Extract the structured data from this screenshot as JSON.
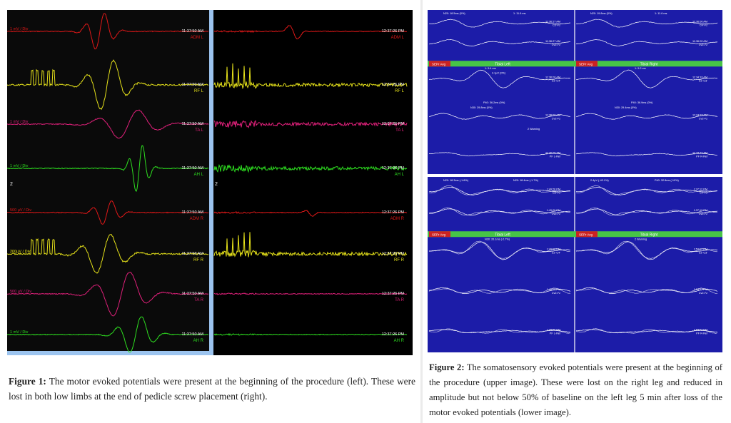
{
  "figure1": {
    "caption_label": "Figure 1:",
    "caption_text": " The motor evoked potentials were present at the beginning of the procedure (left). These were lost in both low limbs at the end of pedicle screw placement (right).",
    "left_group_marker": "2",
    "right_group_marker": "2",
    "left_channels": [
      {
        "scale": "1 mV / Div",
        "time": "11:37:50 AM",
        "label": "ADM L",
        "color": "#e01818"
      },
      {
        "scale": "",
        "time": "11:37:50 AM",
        "label": "RF L",
        "color": "#e6e21a"
      },
      {
        "scale": "1 mV / Div",
        "time": "11:37:50 AM",
        "label": "TA L",
        "color": "#e0207a"
      },
      {
        "scale": "1 mV / Div",
        "time": "11:37:50 AM",
        "label": "AH L",
        "color": "#2ee020"
      },
      {
        "scale": "500 µV / Div",
        "time": "11:37:50 AM",
        "label": "ADM R",
        "color": "#e01818"
      },
      {
        "scale": "200µV / Div",
        "time": "11:37:50 AM",
        "label": "RF R",
        "color": "#e6e21a"
      },
      {
        "scale": "500 µV / Div",
        "time": "11:37:50 AM",
        "label": "TA R",
        "color": "#e0207a"
      },
      {
        "scale": "1 mV / Div",
        "time": "11:37:50 AM",
        "label": "AH R",
        "color": "#2ee020"
      }
    ],
    "right_channels": [
      {
        "scale": "",
        "time": "12:37:26 PM",
        "label": "ADM L"
      },
      {
        "scale": "",
        "time": "12:37:26 PM",
        "label": "RF L"
      },
      {
        "scale": "",
        "time": "12:37:26 PM",
        "label": "TA L"
      },
      {
        "scale": "",
        "time": "12:37:26 PM",
        "label": "AH L"
      },
      {
        "scale": "",
        "time": "12:37:26 PM",
        "label": "ADM R"
      },
      {
        "scale": "",
        "time": "12:37:26 PM",
        "label": "RF R"
      },
      {
        "scale": "",
        "time": "12:37:26 PM",
        "label": "TA R"
      },
      {
        "scale": "",
        "time": "12:37:26 PM",
        "label": "AH R"
      }
    ]
  },
  "figure2": {
    "caption_label": "Figure 2:",
    "caption_text": " The somatosensory evoked potentials were present at the beginning of the procedure (upper image). These were lost on the right leg and reduced in amplitude but not below 50% of baseline on the left leg 5 min after loss of the motor evoked potentials (lower image).",
    "upper": {
      "left_header": "Tibial Left",
      "right_header": "Tibial Right",
      "tab_label": "SEPr Avg",
      "rows": [
        {
          "time_l": "11:36:27 AM",
          "ch_l": "C3'-Fz",
          "time_r": "11:36:00 AM",
          "ch_r": "C4'-Fz"
        },
        {
          "time_l": "11:36:27 AM",
          "ch_l": "Cv2-Fz",
          "time_r": "11:36:00 AM",
          "ch_r": "Cv2-Fz"
        },
        {
          "time_l": "11:36:00 AM",
          "ch_l": "Cz'-C4'",
          "time_r": "11:34:33 AM",
          "ch_r": "Cz'-C3'"
        },
        {
          "time_l": "11:36:00 AM",
          "ch_l": "Cv2-Fz",
          "time_r": "11:34:33 AM",
          "ch_r": "Cv2-Fz"
        },
        {
          "time_l": "11:36:00 AM",
          "ch_l": "PF L-Ref",
          "time_r": "11:34:33 AM",
          "ch_r": "PF R-Ref"
        }
      ],
      "markers": [
        "N20: 18.5ms (0%)",
        "1: 11.6 ms",
        "N20: 19.8ms (0%)",
        "1: 11.6 ms",
        "1: 5.4 ms",
        "1: 5.2 ms",
        "P40: 36.2ms (0%)",
        "P40: 36.9ms (0%)",
        "N30: 29.8ms (0%)",
        "N30: 29.4ms (0%)",
        "4.1µV (0%)",
        "2 Warning"
      ]
    },
    "lower": {
      "left_header": "Tibial Left",
      "right_header": "Tibial Right",
      "tab_label": "SEPr Avg",
      "rows": [
        {
          "time_l": "1:49:26 PM",
          "ch_l": "C3'-Fz",
          "time_r": "1:37:12 PM",
          "ch_r": "C4'-Fz"
        },
        {
          "time_l": "1:49:26 PM",
          "ch_l": "Cv2-Fz",
          "time_r": "1:37:12 PM",
          "ch_r": "Cv2-Fz"
        },
        {
          "time_l": "1:49:00 PM",
          "ch_l": "Cz'-C4'",
          "time_r": "1:53:27 PM",
          "ch_r": "Cz'-C3'"
        },
        {
          "time_l": "1:49:00 PM",
          "ch_l": "Cv2-Fz",
          "time_r": "1:53:27 PM",
          "ch_r": "Cv2-Fz"
        },
        {
          "time_l": "1:49:00 PM",
          "ch_l": "PF L-Ref",
          "time_r": "1:53:27 PM",
          "ch_r": "PF R-Ref"
        }
      ],
      "markers": [
        "N20: 18.3ms (-1.8%)",
        "N20: 18.4ms (-1.7%)",
        "2.4µV (-42.1%)",
        "P40: 32.8ms (-10%)",
        "N30: 26.1ms (-2.7%)",
        "2 Warning"
      ]
    }
  }
}
